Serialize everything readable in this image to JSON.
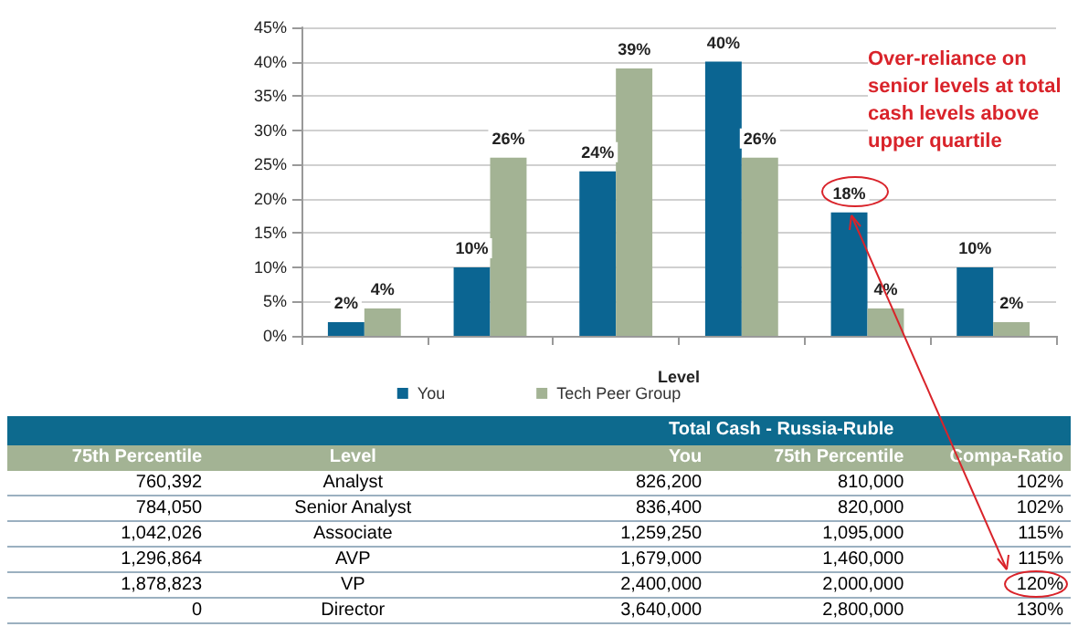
{
  "chart_data": [
    {
      "type": "bar",
      "xlabel": "Level",
      "categories": [
        null,
        null,
        null,
        null,
        null,
        null
      ],
      "series": [
        {
          "name": "You",
          "color": "#0b6592",
          "values": [
            2,
            10,
            24,
            40,
            18,
            10
          ],
          "value_labels": [
            "2%",
            "10%",
            "24%",
            "40%",
            "18%",
            "10%"
          ]
        },
        {
          "name": "Tech Peer Group",
          "color": "#a3b394",
          "values": [
            4,
            26,
            39,
            26,
            4,
            2
          ],
          "value_labels": [
            "4%",
            "26%",
            "39%",
            "26%",
            "4%",
            "2%"
          ]
        }
      ],
      "ylim": [
        0,
        45
      ],
      "yticks": [
        {
          "value": 0,
          "label": "0%"
        },
        {
          "value": 5,
          "label": "5%"
        },
        {
          "value": 10,
          "label": "10%"
        },
        {
          "value": 15,
          "label": "15%"
        },
        {
          "value": 20,
          "label": "20%"
        },
        {
          "value": 25,
          "label": "25%"
        },
        {
          "value": 30,
          "label": "30%"
        },
        {
          "value": 35,
          "label": "35%"
        },
        {
          "value": 40,
          "label": "40%"
        },
        {
          "value": 45,
          "label": "45%"
        }
      ],
      "grid": "y",
      "legend": "bottom",
      "annotations": [
        "Over-reliance on senior levels at total cash levels above upper quartile"
      ]
    },
    {
      "type": "other",
      "title": "Total Cash - Russia-Ruble",
      "categories": [
        "75th Percentile",
        "Level",
        "You",
        "75th Percentile",
        "Compa-Ratio"
      ],
      "annotations": [
        "760,392",
        "Analyst",
        "826,200",
        "810,000",
        "102%",
        "784,050",
        "Senior Analyst",
        "836,400",
        "820,000",
        "102%",
        "1,042,026",
        "Associate",
        "1,259,250",
        "1,095,000",
        "115%",
        "1,296,864",
        "AVP",
        "1,679,000",
        "1,460,000",
        "115%",
        "1,878,823",
        "VP",
        "2,400,000",
        "2,000,000",
        "120%",
        "0",
        "Director",
        "3,640,000",
        "2,800,000",
        "130%"
      ]
    }
  ]
}
